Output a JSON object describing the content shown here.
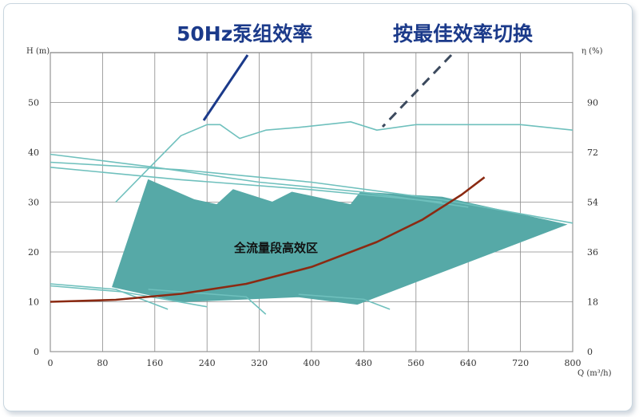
{
  "chart_data": {
    "type": "line",
    "annotations": {
      "efficiency_50hz": "50Hz泵组效率",
      "optimal_switching": "按最佳效率切换",
      "high_efficiency_zone": "全流量段高效区"
    },
    "x_axis": {
      "label": "Q (m³/h)",
      "range": [
        0,
        800
      ],
      "ticks": [
        "0",
        "80",
        "160",
        "240",
        "320",
        "400",
        "480",
        "560",
        "640",
        "720",
        "800"
      ]
    },
    "y_axis_left": {
      "label": "H (m)",
      "range": [
        0,
        60
      ],
      "ticks": [
        "0",
        "10",
        "20",
        "30",
        "40",
        "50"
      ]
    },
    "y_axis_right": {
      "label": "η (%)",
      "range": [
        0,
        108
      ],
      "ticks": [
        "0",
        "18",
        "36",
        "54",
        "72",
        "90"
      ]
    },
    "grid": true,
    "colors": {
      "curves": "#6fc0bd",
      "zone": "#56a9a7",
      "system_curve": "#8b2a12",
      "annotation": "#1b3a8a",
      "leader_dashed": "#3c4a5e"
    },
    "series": [
      {
        "role": "efficiency envelope",
        "axis": "right",
        "x": [
          100,
          150,
          200,
          240,
          260,
          290,
          330,
          380,
          420,
          460,
          500,
          560,
          640,
          720,
          800
        ],
        "y": [
          54,
          66,
          78,
          82,
          82,
          77,
          80,
          81,
          82,
          83,
          80,
          82,
          82,
          82,
          80
        ]
      },
      {
        "role": "head curve 1",
        "axis": "left",
        "x": [
          0,
          160,
          320,
          480,
          640
        ],
        "y": [
          39.6,
          37.0,
          34.0,
          32.0,
          29.0
        ]
      },
      {
        "role": "head curve 2",
        "axis": "left",
        "x": [
          0,
          200,
          400,
          600,
          800
        ],
        "y": [
          38.0,
          36.5,
          34.0,
          30.5,
          25.8
        ]
      },
      {
        "role": "head curve 3",
        "axis": "left",
        "x": [
          0,
          200,
          400,
          600
        ],
        "y": [
          37.0,
          34.5,
          32.5,
          30.0
        ]
      },
      {
        "role": "system curve",
        "axis": "left",
        "x": [
          0,
          100,
          200,
          300,
          400,
          500,
          570,
          630,
          665
        ],
        "y": [
          10.0,
          10.4,
          11.6,
          13.6,
          17.0,
          22.0,
          26.5,
          31.5,
          35.0
        ]
      }
    ],
    "zone_outline": {
      "x": [
        95,
        150,
        220,
        255,
        280,
        340,
        370,
        460,
        475,
        600,
        790,
        470,
        380,
        200,
        95
      ],
      "y": [
        13,
        34.5,
        30.5,
        29.5,
        32.5,
        30,
        32,
        29.5,
        32,
        31,
        25.5,
        9.5,
        11,
        10,
        13
      ]
    }
  }
}
